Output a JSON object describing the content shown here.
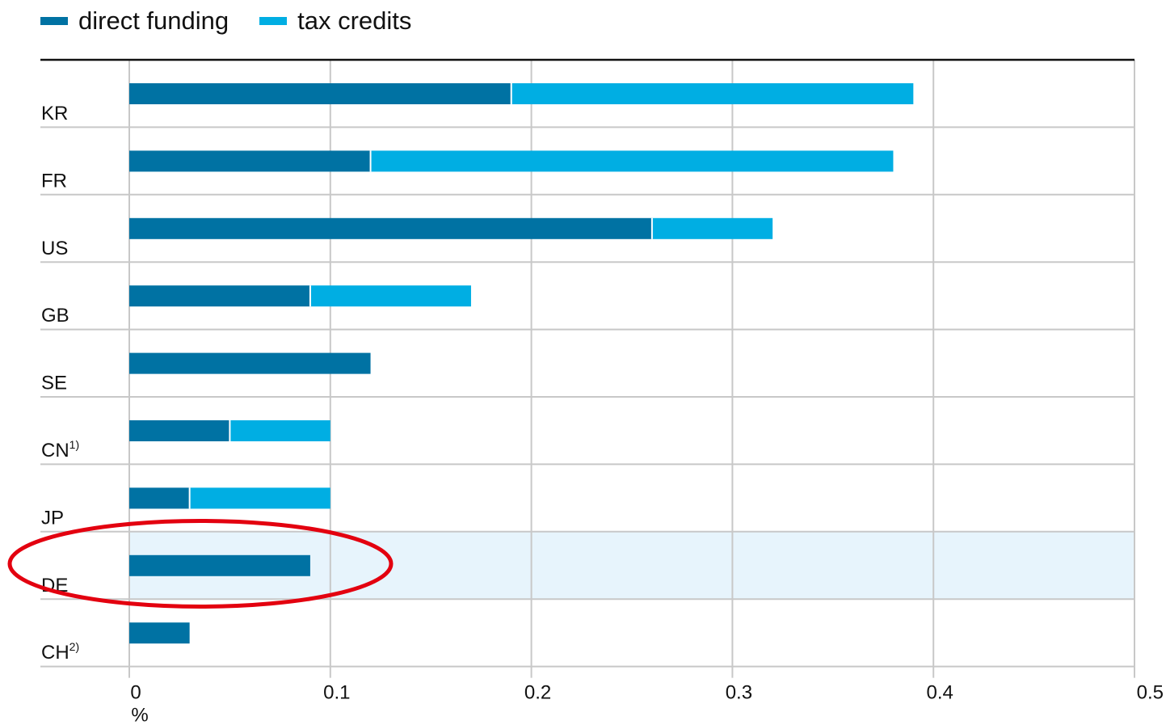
{
  "legend": {
    "direct_label": "direct funding",
    "tax_label": "tax credits"
  },
  "colors": {
    "direct": "#0072a3",
    "tax": "#00aee3",
    "highlight_band": "#e7f4fc",
    "highlight_ellipse": "#e3000f",
    "grid": "#c8c8c8",
    "text": "#111111"
  },
  "chart_data": {
    "type": "bar",
    "orientation": "horizontal",
    "stacked": true,
    "categories": [
      "KR",
      "FR",
      "US",
      "GB",
      "SE",
      "CN",
      "JP",
      "DE",
      "CH"
    ],
    "category_superscripts": [
      "",
      "",
      "",
      "",
      "",
      "1)",
      "",
      "",
      "2)"
    ],
    "series": [
      {
        "name": "direct funding",
        "values": [
          0.19,
          0.12,
          0.26,
          0.09,
          0.12,
          0.05,
          0.03,
          0.09,
          0.03
        ]
      },
      {
        "name": "tax credits",
        "values": [
          0.2,
          0.26,
          0.06,
          0.08,
          0.0,
          0.05,
          0.07,
          0.0,
          0.0
        ]
      }
    ],
    "xlim": [
      0,
      0.5
    ],
    "xticks": [
      0,
      0.1,
      0.2,
      0.3,
      0.4,
      0.5
    ],
    "xtick_labels": [
      "0",
      "0.1",
      "0.2",
      "0.3",
      "0.4",
      "0.5"
    ],
    "xlabel": "%",
    "grid": true,
    "legend_position": "top-left",
    "highlight_category": "DE"
  }
}
